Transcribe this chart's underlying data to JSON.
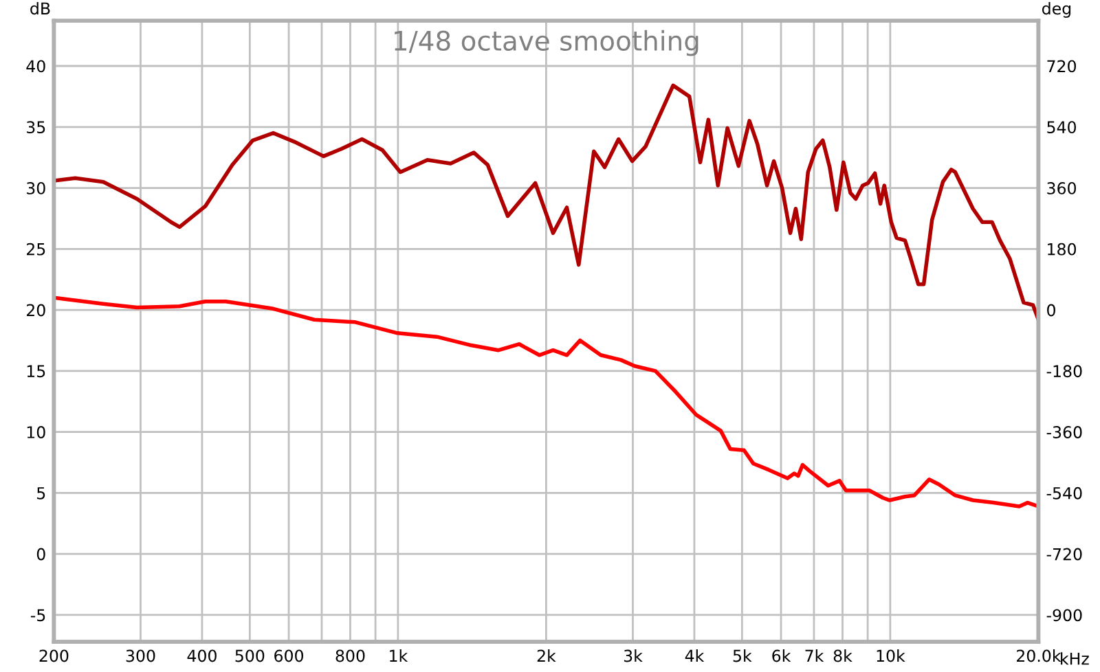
{
  "chart_data": {
    "type": "line",
    "title": "1/48 octave smoothing",
    "ylabel": "dB",
    "y2label": "deg",
    "log": "x",
    "grid": true,
    "marker": "none",
    "line_style": "solid",
    "xlim": [
      200,
      20000
    ],
    "xticks": [
      200,
      300,
      400,
      500,
      600,
      {
        "value": 700,
        "label": null
      },
      800,
      {
        "value": 900,
        "label": null
      },
      {
        "value": 1000,
        "label": "1k"
      },
      {
        "value": 2000,
        "label": "2k"
      },
      {
        "value": 3000,
        "label": "3k"
      },
      {
        "value": 4000,
        "label": "4k"
      },
      {
        "value": 5000,
        "label": "5k"
      },
      {
        "value": 6000,
        "label": "6k"
      },
      {
        "value": 7000,
        "label": "7k"
      },
      {
        "value": 8000,
        "label": "8k"
      },
      {
        "value": 9000,
        "label": null
      },
      {
        "value": 10000,
        "label": "10k"
      },
      {
        "value": 20000,
        "label": "20.0k"
      }
    ],
    "xlabel": "kHz",
    "ylim": [
      -7.2,
      43.7
    ],
    "yticks": [
      -5,
      0,
      5,
      10,
      15,
      20,
      25,
      30,
      35,
      40
    ],
    "y2lim": [
      -979.2,
      853.2
    ],
    "y2ticks": [
      -900,
      -720,
      -540,
      -360,
      -180,
      0,
      180,
      360,
      540,
      720
    ],
    "series": [
      {
        "color": "#b00000",
        "x": [
          200,
          221,
          252,
          295,
          346,
          360,
          406,
          461,
          507,
          558,
          615,
          706,
          767,
          845,
          930,
          1011,
          1148,
          1279,
          1426,
          1521,
          1671,
          1901,
          2066,
          2203,
          2329,
          2500,
          2630,
          2806,
          2992,
          3185,
          3622,
          3908,
          4112,
          4272,
          4467,
          4670,
          4919,
          5176,
          5373,
          5619,
          5802,
          6030,
          6266,
          6428,
          6592,
          6808,
          7064,
          7295,
          7534,
          7780,
          8035,
          8299,
          8511,
          8790,
          9016,
          9311,
          9550,
          9727,
          10046,
          10304,
          10715,
          10990,
          11405,
          11697,
          12162,
          12794,
          13305,
          13552,
          14724,
          15382,
          16104,
          16711,
          17500,
          18666,
          19500,
          20000
        ],
        "values": [
          30.6,
          30.8,
          30.5,
          29.1,
          27.2,
          26.8,
          28.5,
          31.9,
          33.9,
          34.5,
          33.8,
          32.6,
          33.2,
          34.0,
          33.1,
          31.3,
          32.3,
          32.0,
          32.9,
          31.9,
          27.7,
          30.4,
          26.3,
          28.4,
          23.7,
          33.0,
          31.7,
          34.0,
          32.2,
          33.4,
          38.4,
          37.5,
          32.1,
          35.6,
          30.2,
          34.9,
          31.8,
          35.5,
          33.6,
          30.2,
          32.2,
          30.0,
          26.3,
          28.3,
          25.8,
          31.3,
          33.2,
          33.9,
          31.7,
          28.2,
          32.1,
          29.6,
          29.1,
          30.2,
          30.4,
          31.2,
          28.7,
          30.2,
          27.2,
          25.9,
          25.7,
          24.3,
          22.1,
          22.1,
          27.4,
          30.5,
          31.5,
          31.3,
          28.3,
          27.2,
          27.2,
          25.7,
          24.2,
          20.6,
          20.4,
          19.2
        ]
      },
      {
        "color": "#ff0000",
        "x": [
          200,
          252,
          295,
          360,
          406,
          447,
          558,
          676,
          819,
          998,
          1200,
          1409,
          1600,
          1762,
          1937,
          2066,
          2203,
          2344,
          2582,
          2838,
          3027,
          3334,
          3664,
          4036,
          4218,
          4525,
          4732,
          5046,
          5274,
          5661,
          6186,
          6384,
          6502,
          6637,
          6855,
          7482,
          7891,
          8128,
          9078,
          9661,
          9977,
          10715,
          11196,
          11995,
          12562,
          13552,
          14724,
          16220,
          18281,
          19011,
          20000
        ],
        "values": [
          21.0,
          20.5,
          20.2,
          20.3,
          20.7,
          20.7,
          20.1,
          19.2,
          19.0,
          18.1,
          17.8,
          17.1,
          16.7,
          17.2,
          16.3,
          16.7,
          16.3,
          17.5,
          16.3,
          15.9,
          15.4,
          15.0,
          13.3,
          11.4,
          10.9,
          10.1,
          8.6,
          8.5,
          7.4,
          6.9,
          6.2,
          6.6,
          6.4,
          7.3,
          6.8,
          5.6,
          6.0,
          5.2,
          5.2,
          4.6,
          4.4,
          4.7,
          4.8,
          6.1,
          5.7,
          4.8,
          4.4,
          4.2,
          3.9,
          4.2,
          3.9
        ]
      }
    ]
  }
}
